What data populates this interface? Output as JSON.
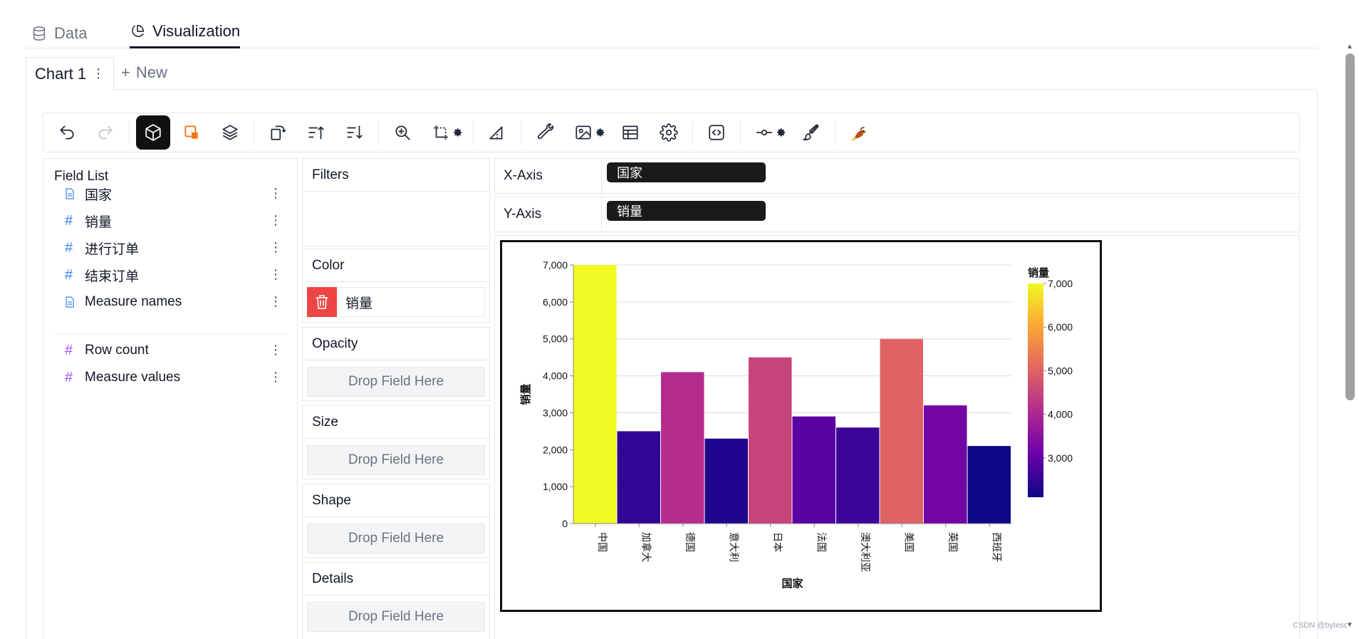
{
  "tabs": [
    {
      "label": "Data",
      "active": false,
      "icon": "database-icon"
    },
    {
      "label": "Visualization",
      "active": true,
      "icon": "pie-chart-icon"
    }
  ],
  "chart_tabs": {
    "current": "Chart 1",
    "more": "⋮",
    "new_label": "New",
    "new_plus": "+"
  },
  "toolbar": {
    "items": [
      "undo",
      "redo",
      "chart-type",
      "mark-color",
      "layers",
      "transpose",
      "sort-ascending",
      "sort-descending",
      "zoom",
      "resize",
      "resize-settings",
      "axis-tools",
      "wrench",
      "export-image",
      "export-settings",
      "table",
      "settings",
      "code",
      "slider",
      "slider-settings",
      "brush",
      "logo"
    ]
  },
  "field_list": {
    "title": "Field List",
    "dimensions": [
      {
        "name": "国家",
        "type": "dimension"
      },
      {
        "name": "销量",
        "type": "measure"
      },
      {
        "name": "进行订单",
        "type": "measure"
      },
      {
        "name": "结束订单",
        "type": "measure"
      },
      {
        "name": "Measure names",
        "type": "dimension"
      }
    ],
    "measures": [
      {
        "name": "Row count",
        "type": "computed"
      },
      {
        "name": "Measure values",
        "type": "computed"
      }
    ],
    "more": "⋮"
  },
  "encodings": {
    "filters": "Filters",
    "color": "Color",
    "color_field": "销量",
    "opacity": "Opacity",
    "size": "Size",
    "shape": "Shape",
    "details": "Details",
    "drop_placeholder": "Drop Field Here"
  },
  "axes": {
    "x_label": "X-Axis",
    "x_field": "国家",
    "y_label": "Y-Axis",
    "y_field": "销量"
  },
  "chart_data": {
    "type": "bar",
    "categories": [
      "中国",
      "加拿大",
      "德国",
      "意大利",
      "日本",
      "法国",
      "澳大利亚",
      "美国",
      "英国",
      "西班牙"
    ],
    "values": [
      7000,
      2500,
      4100,
      2300,
      4500,
      2900,
      2600,
      5000,
      3200,
      2100
    ],
    "xlabel": "国家",
    "ylabel": "销量",
    "ylim": [
      0,
      7000
    ],
    "yticks": [
      0,
      1000,
      2000,
      3000,
      4000,
      5000,
      6000,
      7000
    ],
    "grid": true,
    "legend": {
      "title": "销量",
      "position": "right",
      "ticks": [
        3000,
        4000,
        5000,
        6000,
        7000
      ],
      "range": [
        2100,
        7000
      ],
      "colors": [
        "#0d0887",
        "#6a00a8",
        "#b12a90",
        "#e16462",
        "#fca636",
        "#f0f921"
      ]
    }
  },
  "watermark": "CSDN @bytesc"
}
